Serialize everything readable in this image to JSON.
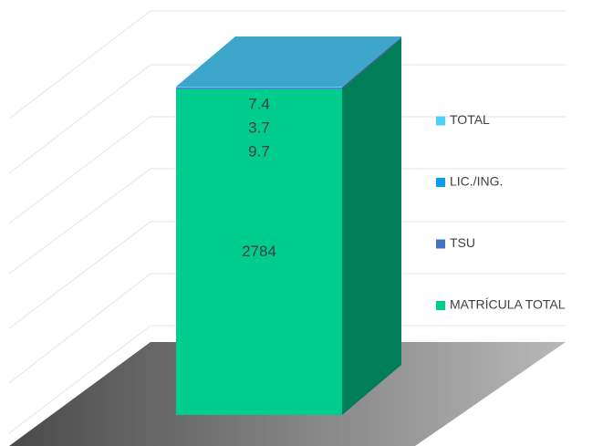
{
  "chart_data": {
    "type": "bar",
    "stacked": true,
    "categories": [
      null
    ],
    "series": [
      {
        "name": "MATRÍCULA TOTAL",
        "color": "#00cc8e",
        "values": [
          2784
        ]
      },
      {
        "name": "TSU",
        "color": "#4472c4",
        "values": [
          9.7
        ]
      },
      {
        "name": "LIC./ING.",
        "color": "#0a9bf5",
        "values": [
          3.7
        ]
      },
      {
        "name": "TOTAL",
        "color": "#4dcffc",
        "values": [
          7.4
        ]
      }
    ]
  }
}
